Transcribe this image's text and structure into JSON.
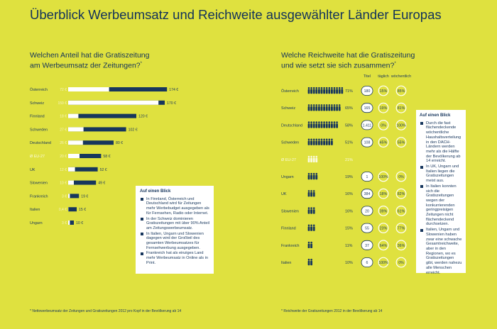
{
  "title": "Überblick Werbeumsatz und Reichweite ausgewählter Länder Europas",
  "left": {
    "question_line1": "Welchen Anteil hat die Gratiszeitung",
    "question_line2": "am Werbeumsatz der Zeitungen?",
    "note_marker": "*",
    "footnote": "* Nettowerbeumsatz der Zeitungen und Gratiszeitungen 2012 pro Kopf in der Bevölkerung ab 14",
    "infobox": {
      "title": "Auf einen Blick",
      "items": [
        "In Finnland, Österreich und Deutschland wird für Zeitungen mehr Werbebudget ausgegeben als für Fernsehen, Radio oder Internet.",
        "In der Schweiz dominieren Gratiszeitungen mit über 90% Anteil am Zeitungswerbeumsatz.",
        "In Italien, Ungarn und Slowenien dagegen wird der Großteil des gesamten Werbeumsatzes für Fernsehwerbung ausgegeben.",
        "Frankreich hat als einziges Land mehr Werbeumsatz in Online als in Print."
      ]
    }
  },
  "right": {
    "question_line1": "Welche Reichweite hat die Gratiszeitung",
    "question_line2": "und wie setzt sie sich zusammen?",
    "note_marker": "*",
    "footnote": "* Reichweite der Gratiszeitungen 2012 in der Bevölkerung ab 14",
    "infobox": {
      "title": "Auf einen Blick",
      "items": [
        "Durch die fast flächendeckende wöchentliche Haushaltsverteilung in den DACH-Ländern werden mehr als die Hälfte der Bevölkerung ab 14 erreicht.",
        "In UK, Ungarn und Italien liegen die Gratiszeitungen meist aus.",
        "In Italien konnten sich die Gratiszeitungen wegen der konkurrierenden geringpreisigen Zeitungen nicht flächendeckend durchsetzen.",
        "Italien, Ungarn und Slowenien haben zwar eine schwache Gesamtreichweite, aber in den Regionen, wo es Gratiszeitungen gibt, werden nahezu alle Menschen erreicht."
      ]
    }
  },
  "colors": {
    "background": "#dfe13f",
    "navy": "#17365d",
    "white": "#ffffff"
  },
  "chart_data": [
    {
      "type": "bar",
      "title": "Welchen Anteil hat die Gratiszeitung am Werbeumsatz der Zeitungen?",
      "unit": "€",
      "categories": [
        "Österreich",
        "Schweiz",
        "Finnland",
        "Schweden",
        "Deutschland",
        "Ø EU-27",
        "UK",
        "Slowenien",
        "Frankreich",
        "Italien",
        "Ungarn"
      ],
      "series": [
        {
          "name": "Gratiszeitungen",
          "color": "#ffffff",
          "values": [
            72,
            159,
            18,
            27,
            26,
            20,
            12,
            10,
            3,
            0.4,
            3
          ],
          "labels": [
            "72 €",
            "159 €",
            "18 €",
            "27 €",
            "26 €",
            "20 €",
            "12 €",
            "10 €",
            "3 €",
            "0,4 €",
            "3 €"
          ]
        },
        {
          "name": "Zeitungen",
          "color": "#17365d",
          "values": [
            174,
            170,
            120,
            102,
            80,
            58,
            52,
            49,
            19,
            15,
            10
          ],
          "labels": [
            "174 €",
            "170 €",
            "120 €",
            "102 €",
            "80 €",
            "58 €",
            "52 €",
            "49 €",
            "19 €",
            "15 €",
            "10 €"
          ]
        }
      ],
      "xlim": [
        0,
        180
      ]
    },
    {
      "type": "table",
      "title": "Welche Reichweite hat die Gratiszeitung und wie setzt sie sich zusammen?",
      "columns": [
        "Titel",
        "täglich",
        "wöchentlich"
      ],
      "rows": [
        {
          "country": "Österreich",
          "reach": "71%",
          "figures": 14,
          "titles": "180",
          "daily": "15%",
          "weekly": "85%"
        },
        {
          "country": "Schweiz",
          "reach": "65%",
          "figures": 13,
          "titles": "165",
          "daily": "19%",
          "weekly": "81%"
        },
        {
          "country": "Deutschland",
          "reach": "58%",
          "figures": 12,
          "titles": "1.411",
          "daily": "0%",
          "weekly": "100%"
        },
        {
          "country": "Schweden",
          "reach": "51%",
          "figures": 10,
          "titles": "108",
          "daily": "45%",
          "weekly": "55%"
        },
        {
          "country": "Ø EU-27",
          "reach": "21%",
          "figures": 4,
          "average": true
        },
        {
          "country": "Ungarn",
          "reach": "19%",
          "figures": 4,
          "titles": "1",
          "daily": "100%",
          "weekly": "0%"
        },
        {
          "country": "UK",
          "reach": "16%",
          "figures": 3,
          "titles": "384",
          "daily": "18%",
          "weekly": "82%"
        },
        {
          "country": "Slowenien",
          "reach": "16%",
          "figures": 3,
          "titles": "20",
          "daily": "39%",
          "weekly": "61%"
        },
        {
          "country": "Finnland",
          "reach": "15%",
          "figures": 3,
          "titles": "55",
          "daily": "23%",
          "weekly": "77%"
        },
        {
          "country": "Frankreich",
          "reach": "11%",
          "figures": 2,
          "titles": "37",
          "daily": "64%",
          "weekly": "36%"
        },
        {
          "country": "Italien",
          "reach": "10%",
          "figures": 2,
          "titles": "6",
          "daily": "100%",
          "weekly": "0%"
        }
      ]
    }
  ]
}
